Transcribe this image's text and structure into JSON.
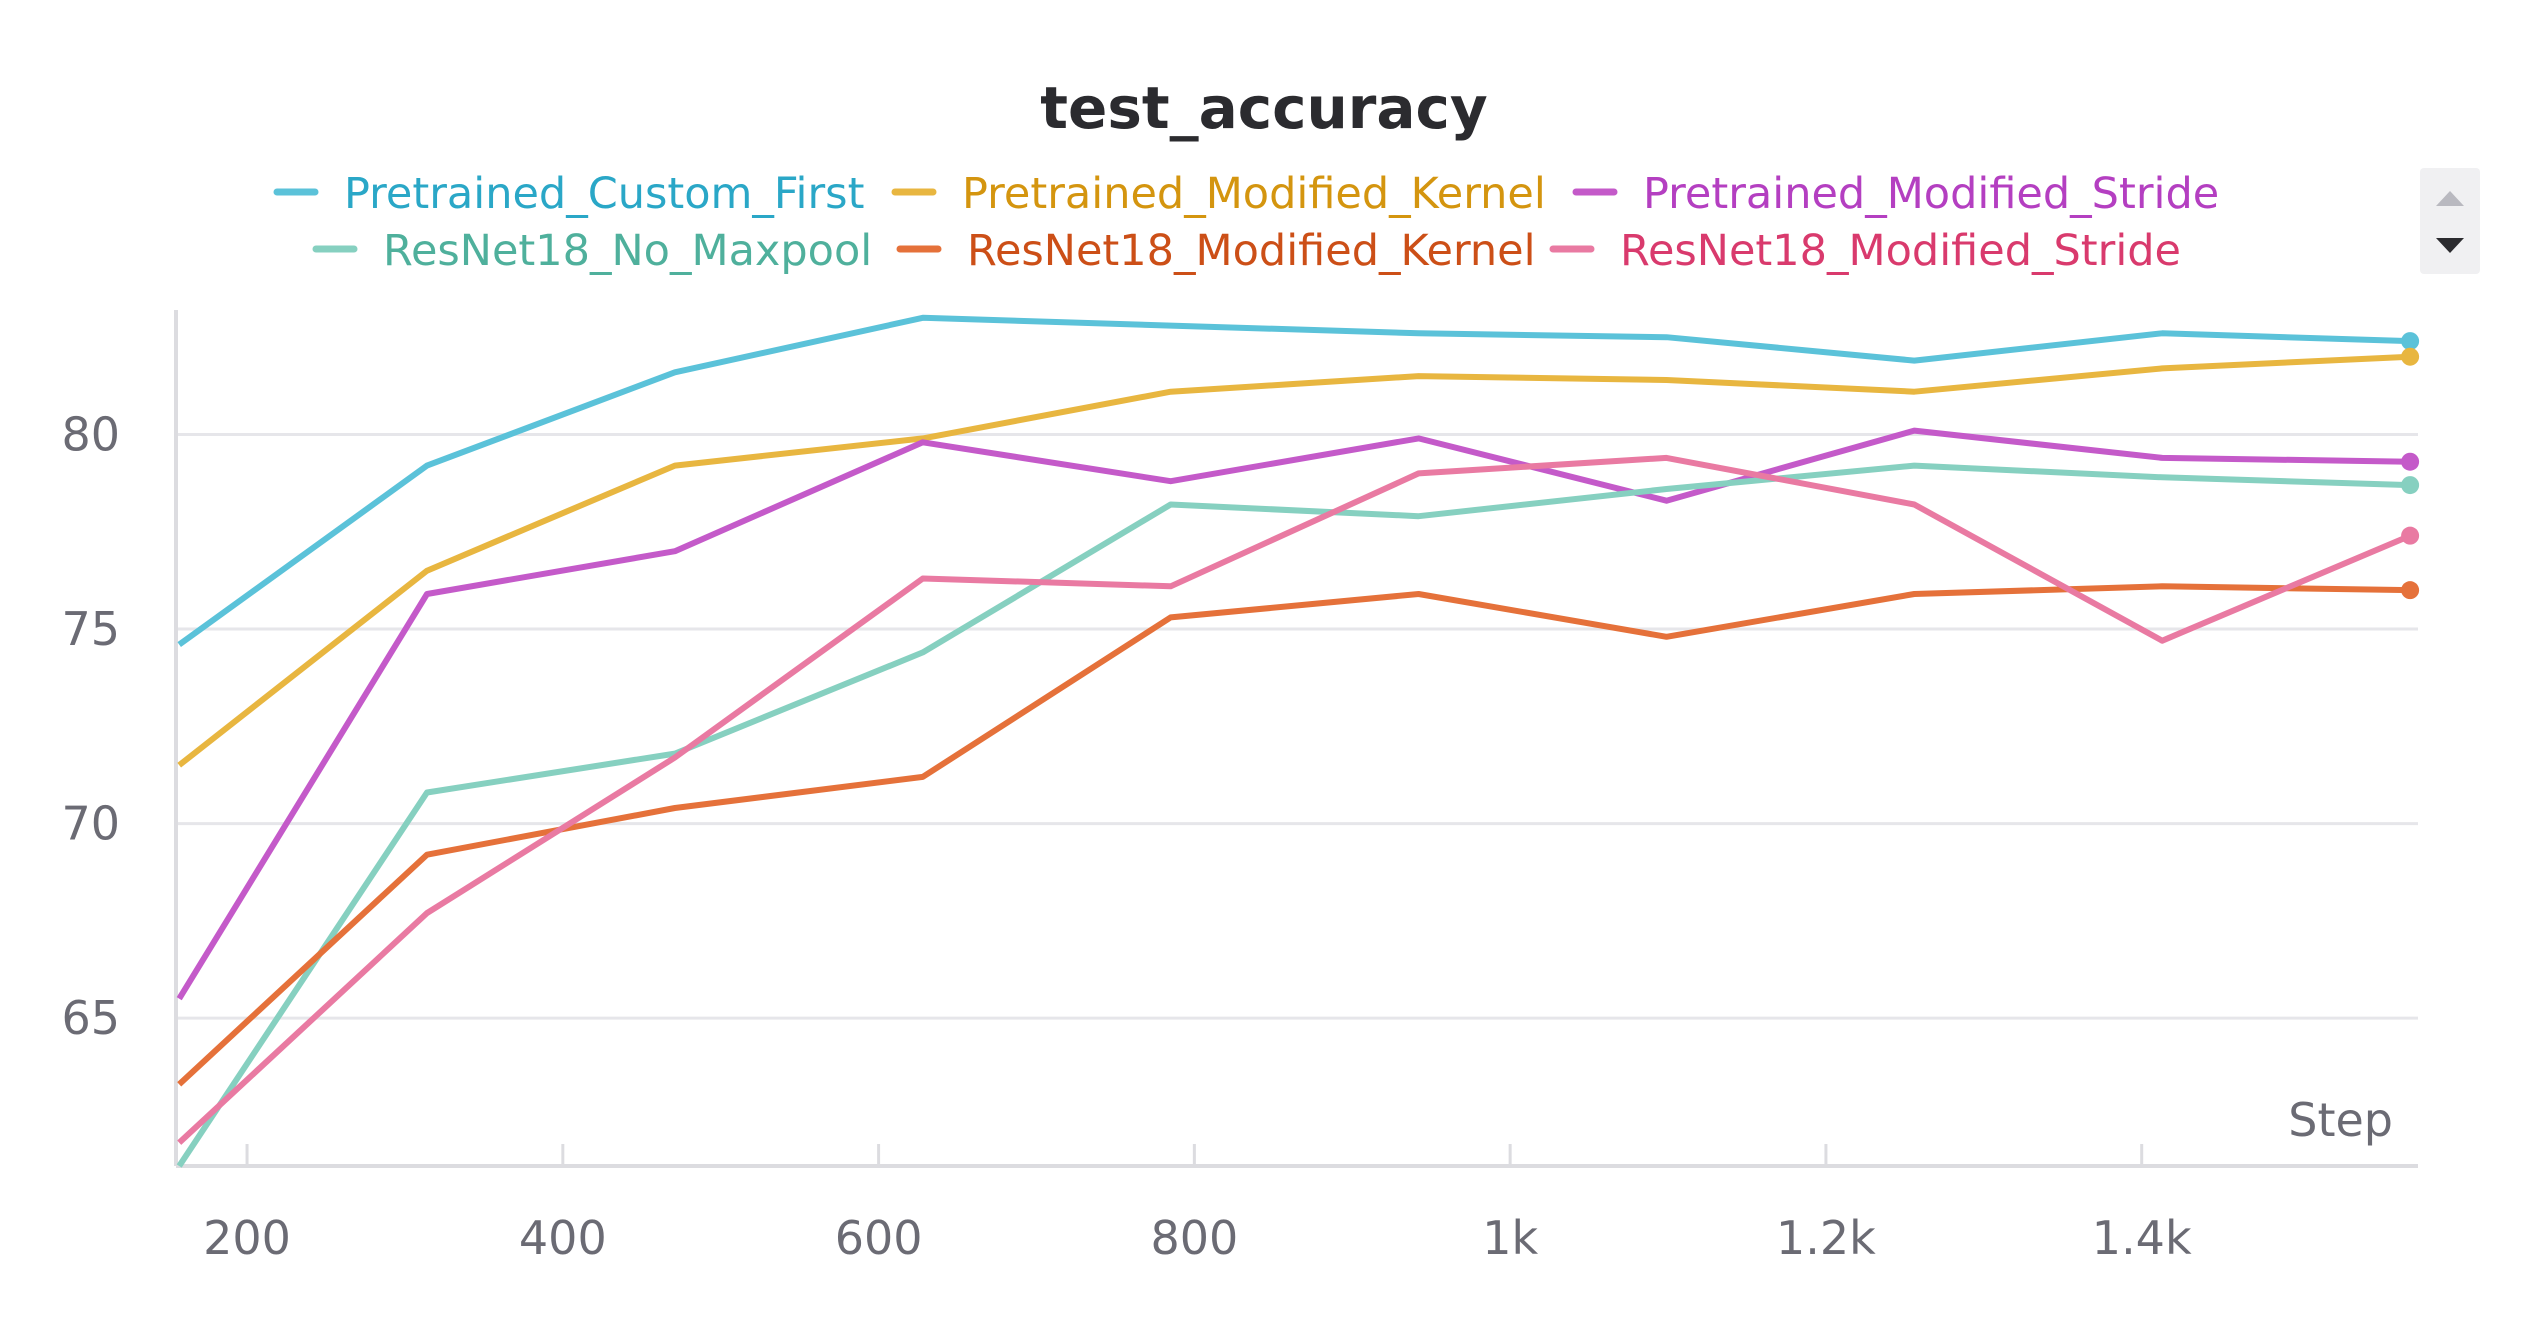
{
  "chart_data": {
    "type": "line",
    "title": "test_accuracy",
    "xlabel": "Step",
    "ylabel": "",
    "xlim": [
      155,
      1575
    ],
    "ylim": [
      61.2,
      83.2
    ],
    "x_ticks": [
      200,
      400,
      600,
      800,
      1000,
      1200,
      1400
    ],
    "x_tick_labels": [
      "200",
      "400",
      "600",
      "800",
      "1k",
      "1.2k",
      "1.4k"
    ],
    "y_ticks": [
      65,
      70,
      75,
      80
    ],
    "y_tick_labels": [
      "65",
      "70",
      "75",
      "80"
    ],
    "grid": "horizontal",
    "legend_position": "top",
    "x": [
      157,
      314,
      471,
      628,
      785,
      942,
      1099,
      1256,
      1413,
      1570
    ],
    "series": [
      {
        "name": "Pretrained_Custom_First",
        "color": "#5bc2d9",
        "text_color": "#2aa7c7",
        "values": [
          74.6,
          79.2,
          81.6,
          83.0,
          82.8,
          82.6,
          82.5,
          81.9,
          82.6,
          82.4
        ]
      },
      {
        "name": "Pretrained_Modified_Kernel",
        "color": "#e8b640",
        "text_color": "#d4950f",
        "values": [
          71.5,
          76.5,
          79.2,
          79.9,
          81.1,
          81.5,
          81.4,
          81.1,
          81.7,
          82.0
        ]
      },
      {
        "name": "Pretrained_Modified_Stride",
        "color": "#c45ac9",
        "text_color": "#b43fc1",
        "values": [
          65.5,
          75.9,
          77.0,
          79.8,
          78.8,
          79.9,
          78.3,
          80.1,
          79.4,
          79.3
        ]
      },
      {
        "name": "ResNet18_No_Maxpool",
        "color": "#86d0c0",
        "text_color": "#4fb09c",
        "values": [
          61.2,
          70.8,
          71.8,
          74.4,
          78.2,
          77.9,
          78.6,
          79.2,
          78.9,
          78.7
        ]
      },
      {
        "name": "ResNet18_Modified_Kernel",
        "color": "#e5713a",
        "text_color": "#cc4f17",
        "values": [
          63.3,
          69.2,
          70.4,
          71.2,
          75.3,
          75.9,
          74.8,
          75.9,
          76.1,
          76.0
        ]
      },
      {
        "name": "ResNet18_Modified_Stride",
        "color": "#e97aa2",
        "text_color": "#d93a6d",
        "values": [
          61.8,
          67.7,
          71.7,
          76.3,
          76.1,
          79.0,
          79.4,
          78.2,
          74.7,
          77.4
        ]
      }
    ]
  },
  "ui": {
    "scroll_up_icon": "triangle-up-icon",
    "scroll_down_icon": "triangle-down-icon"
  }
}
